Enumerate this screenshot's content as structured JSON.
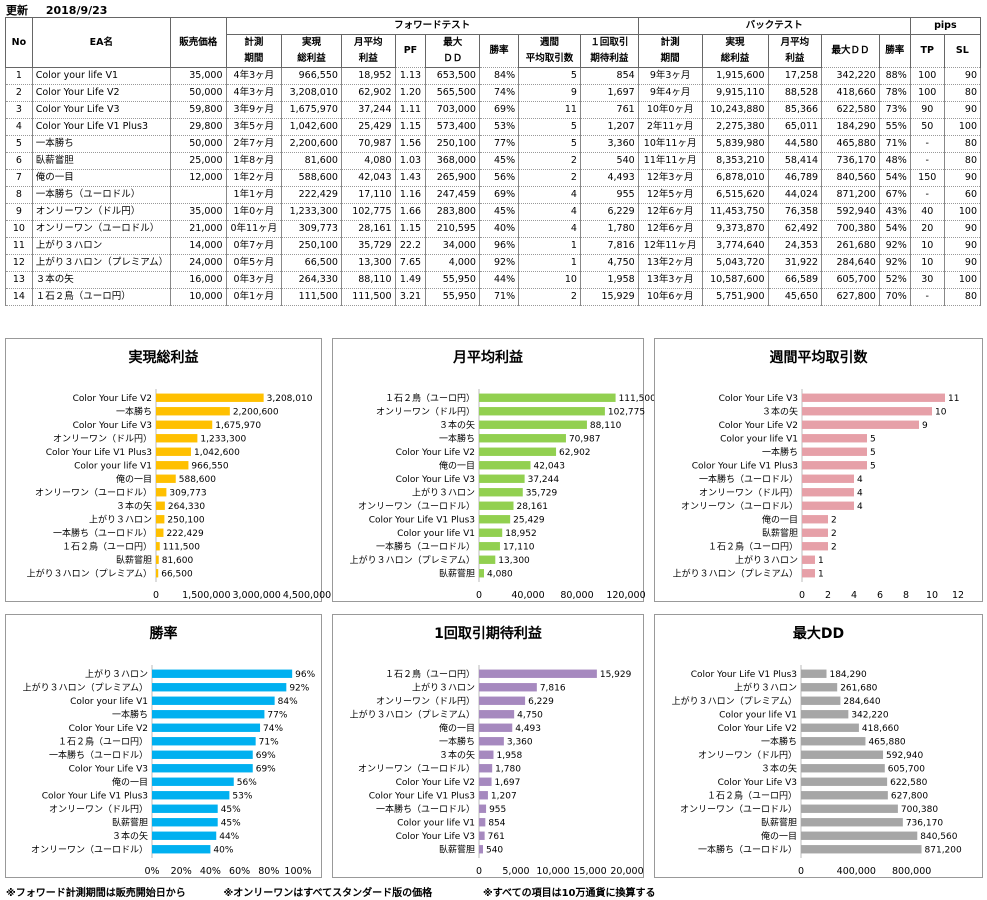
{
  "header": {
    "update_label": "更新",
    "update_date": "2018/9/23"
  },
  "table": {
    "group_headers": {
      "forward": "フォワードテスト",
      "back": "バックテスト",
      "pips": "pips"
    },
    "columns": {
      "no": "No",
      "ea": "EA名",
      "price": "販売価格",
      "f_period": [
        "計測",
        "期間"
      ],
      "f_total": [
        "実現",
        "総利益"
      ],
      "f_monthly": [
        "月平均",
        "利益"
      ],
      "f_pf": "PF",
      "f_dd": [
        "最大",
        "ＤＤ"
      ],
      "f_win": "勝率",
      "f_weekly": [
        "週間",
        "平均取引数"
      ],
      "f_expect": [
        "１回取引",
        "期待利益"
      ],
      "b_period": [
        "計測",
        "期間"
      ],
      "b_total": [
        "実現",
        "総利益"
      ],
      "b_monthly": [
        "月平均",
        "利益"
      ],
      "b_dd": "最大ＤＤ",
      "b_win": "勝率",
      "tp": "TP",
      "sl": "SL"
    },
    "rows": [
      [
        "1",
        "Color your life V1",
        "35,000",
        "4年3ヶ月",
        "966,550",
        "18,952",
        "1.13",
        "653,500",
        "84%",
        "5",
        "854",
        "9年3ヶ月",
        "1,915,600",
        "17,258",
        "342,220",
        "88%",
        "100",
        "90"
      ],
      [
        "2",
        "Color Your Life V2",
        "50,000",
        "4年3ヶ月",
        "3,208,010",
        "62,902",
        "1.20",
        "565,500",
        "74%",
        "9",
        "1,697",
        "9年4ヶ月",
        "9,915,110",
        "88,528",
        "418,660",
        "78%",
        "100",
        "80"
      ],
      [
        "3",
        "Color Your Life V3",
        "59,800",
        "3年9ヶ月",
        "1,675,970",
        "37,244",
        "1.11",
        "703,000",
        "69%",
        "11",
        "761",
        "10年0ヶ月",
        "10,243,880",
        "85,366",
        "622,580",
        "73%",
        "90",
        "90"
      ],
      [
        "4",
        "Color Your Life V1 Plus3",
        "29,800",
        "3年5ヶ月",
        "1,042,600",
        "25,429",
        "1.15",
        "573,400",
        "53%",
        "5",
        "1,207",
        "2年11ヶ月",
        "2,275,380",
        "65,011",
        "184,290",
        "55%",
        "50",
        "100"
      ],
      [
        "5",
        "一本勝ち",
        "50,000",
        "2年7ヶ月",
        "2,200,600",
        "70,987",
        "1.56",
        "250,100",
        "77%",
        "5",
        "3,360",
        "10年11ヶ月",
        "5,839,980",
        "44,580",
        "465,880",
        "71%",
        "-",
        "80"
      ],
      [
        "6",
        "臥薪嘗胆",
        "25,000",
        "1年8ヶ月",
        "81,600",
        "4,080",
        "1.03",
        "368,000",
        "45%",
        "2",
        "540",
        "11年11ヶ月",
        "8,353,210",
        "58,414",
        "736,170",
        "48%",
        "-",
        "80"
      ],
      [
        "7",
        "俺の一目",
        "12,000",
        "1年2ヶ月",
        "588,600",
        "42,043",
        "1.43",
        "265,900",
        "56%",
        "2",
        "4,493",
        "12年3ヶ月",
        "6,878,010",
        "46,789",
        "840,560",
        "54%",
        "150",
        "90"
      ],
      [
        "8",
        "一本勝ち（ユーロドル）",
        "",
        "1年1ヶ月",
        "222,429",
        "17,110",
        "1.16",
        "247,459",
        "69%",
        "4",
        "955",
        "12年5ヶ月",
        "6,515,620",
        "44,024",
        "871,200",
        "67%",
        "-",
        "60"
      ],
      [
        "9",
        "オンリーワン（ドル円）",
        "35,000",
        "1年0ヶ月",
        "1,233,300",
        "102,775",
        "1.66",
        "283,800",
        "45%",
        "4",
        "6,229",
        "12年6ヶ月",
        "11,453,750",
        "76,358",
        "592,940",
        "43%",
        "40",
        "100"
      ],
      [
        "10",
        "オンリーワン（ユーロドル）",
        "21,000",
        "0年11ヶ月",
        "309,773",
        "28,161",
        "1.15",
        "210,595",
        "40%",
        "4",
        "1,780",
        "12年6ヶ月",
        "9,373,870",
        "62,492",
        "700,380",
        "54%",
        "20",
        "90"
      ],
      [
        "11",
        "上がり３ハロン",
        "14,000",
        "0年7ヶ月",
        "250,100",
        "35,729",
        "22.2",
        "34,000",
        "96%",
        "1",
        "7,816",
        "12年11ヶ月",
        "3,774,640",
        "24,353",
        "261,680",
        "92%",
        "10",
        "90"
      ],
      [
        "12",
        "上がり３ハロン（プレミアム）",
        "24,000",
        "0年5ヶ月",
        "66,500",
        "13,300",
        "7.65",
        "4,000",
        "92%",
        "1",
        "4,750",
        "13年2ヶ月",
        "5,043,720",
        "31,922",
        "284,640",
        "92%",
        "10",
        "90"
      ],
      [
        "13",
        "３本の矢",
        "16,000",
        "0年3ヶ月",
        "264,330",
        "88,110",
        "1.49",
        "55,950",
        "44%",
        "10",
        "1,958",
        "13年3ヶ月",
        "10,587,600",
        "66,589",
        "605,700",
        "52%",
        "30",
        "100"
      ],
      [
        "14",
        "１石２鳥（ユーロ円）",
        "10,000",
        "0年1ヶ月",
        "111,500",
        "111,500",
        "3.21",
        "55,950",
        "71%",
        "2",
        "15,929",
        "10年6ヶ月",
        "5,751,900",
        "45,650",
        "627,800",
        "70%",
        "-",
        "80"
      ]
    ]
  },
  "chart_data": [
    {
      "type": "bar",
      "title": "実現総利益",
      "color": "#FFC000",
      "max": 4500000,
      "ticks": [
        0,
        1500000,
        3000000,
        4500000
      ],
      "tick_labels": [
        "0",
        "1,500,000",
        "3,000,000",
        "4,500,000"
      ],
      "categories": [
        "Color Your Life V2",
        "一本勝ち",
        "Color Your Life V3",
        "オンリーワン（ドル円）",
        "Color Your Life V1 Plus3",
        "Color your life V1",
        "俺の一目",
        "オンリーワン（ユーロドル）",
        "３本の矢",
        "上がり３ハロン",
        "一本勝ち（ユーロドル）",
        "１石２鳥（ユーロ円）",
        "臥薪嘗胆",
        "上がり３ハロン（プレミアム）"
      ],
      "values": [
        3208010,
        2200600,
        1675970,
        1233300,
        1042600,
        966550,
        588600,
        309773,
        264330,
        250100,
        222429,
        111500,
        81600,
        66500
      ],
      "labels": [
        "3,208,010",
        "2,200,600",
        "1,675,970",
        "1,233,300",
        "1,042,600",
        "966,550",
        "588,600",
        "309,773",
        "264,330",
        "250,100",
        "222,429",
        "111,500",
        "81,600",
        "66,500"
      ]
    },
    {
      "type": "bar",
      "title": "月平均利益",
      "color": "#92D050",
      "max": 120000,
      "ticks": [
        0,
        40000,
        80000,
        120000
      ],
      "tick_labels": [
        "0",
        "40,000",
        "80,000",
        "120,000"
      ],
      "categories": [
        "１石２鳥（ユーロ円）",
        "オンリーワン（ドル円）",
        "３本の矢",
        "一本勝ち",
        "Color Your Life V2",
        "俺の一目",
        "Color Your Life V3",
        "上がり３ハロン",
        "オンリーワン（ユーロドル）",
        "Color Your Life V1 Plus3",
        "Color your life V1",
        "一本勝ち（ユーロドル）",
        "上がり３ハロン（プレミアム）",
        "臥薪嘗胆"
      ],
      "values": [
        111500,
        102775,
        88110,
        70987,
        62902,
        42043,
        37244,
        35729,
        28161,
        25429,
        18952,
        17110,
        13300,
        4080
      ],
      "labels": [
        "111,500",
        "102,775",
        "88,110",
        "70,987",
        "62,902",
        "42,043",
        "37,244",
        "35,729",
        "28,161",
        "25,429",
        "18,952",
        "17,110",
        "13,300",
        "4,080"
      ]
    },
    {
      "type": "bar",
      "title": "週間平均取引数",
      "color": "#E6A0A8",
      "max": 12,
      "ticks": [
        0,
        2,
        4,
        6,
        8,
        10,
        12
      ],
      "tick_labels": [
        "0",
        "2",
        "4",
        "6",
        "8",
        "10",
        "12"
      ],
      "categories": [
        "Color Your Life V3",
        "３本の矢",
        "Color Your Life V2",
        "Color your life V1",
        "一本勝ち",
        "Color Your Life V1 Plus3",
        "一本勝ち（ユーロドル）",
        "オンリーワン（ドル円）",
        "オンリーワン（ユーロドル）",
        "俺の一目",
        "臥薪嘗胆",
        "１石２鳥（ユーロ円）",
        "上がり３ハロン",
        "上がり３ハロン（プレミアム）"
      ],
      "values": [
        11,
        10,
        9,
        5,
        5,
        5,
        4,
        4,
        4,
        2,
        2,
        2,
        1,
        1
      ],
      "labels": [
        "11",
        "10",
        "9",
        "5",
        "5",
        "5",
        "4",
        "4",
        "4",
        "2",
        "2",
        "2",
        "1",
        "1"
      ]
    },
    {
      "type": "bar",
      "title": "勝率",
      "color": "#00B0F0",
      "max": 100,
      "ticks": [
        0,
        20,
        40,
        60,
        80,
        100
      ],
      "tick_labels": [
        "0%",
        "20%",
        "40%",
        "60%",
        "80%",
        "100%"
      ],
      "categories": [
        "上がり３ハロン",
        "上がり３ハロン（プレミアム）",
        "Color your life V1",
        "一本勝ち",
        "Color Your Life V2",
        "１石２鳥（ユーロ円）",
        "一本勝ち（ユーロドル）",
        "Color Your Life V3",
        "俺の一目",
        "Color Your Life V1 Plus3",
        "オンリーワン（ドル円）",
        "臥薪嘗胆",
        "３本の矢",
        "オンリーワン（ユーロドル）"
      ],
      "values": [
        96,
        92,
        84,
        77,
        74,
        71,
        69,
        69,
        56,
        53,
        45,
        45,
        44,
        40
      ],
      "labels": [
        "96%",
        "92%",
        "84%",
        "77%",
        "74%",
        "71%",
        "69%",
        "69%",
        "56%",
        "53%",
        "45%",
        "45%",
        "44%",
        "40%"
      ]
    },
    {
      "type": "bar",
      "title": "1回取引期待利益",
      "color": "#A689BF",
      "max": 20000,
      "ticks": [
        0,
        5000,
        10000,
        15000,
        20000
      ],
      "tick_labels": [
        "0",
        "5,000",
        "10,000",
        "15,000",
        "20,000"
      ],
      "categories": [
        "１石２鳥（ユーロ円）",
        "上がり３ハロン",
        "オンリーワン（ドル円）",
        "上がり３ハロン（プレミアム）",
        "俺の一目",
        "一本勝ち",
        "３本の矢",
        "オンリーワン（ユーロドル）",
        "Color Your Life V2",
        "Color Your Life V1 Plus3",
        "一本勝ち（ユーロドル）",
        "Color your life V1",
        "Color Your Life V3",
        "臥薪嘗胆"
      ],
      "values": [
        15929,
        7816,
        6229,
        4750,
        4493,
        3360,
        1958,
        1780,
        1697,
        1207,
        955,
        854,
        761,
        540
      ],
      "labels": [
        "15,929",
        "7,816",
        "6,229",
        "4,750",
        "4,493",
        "3,360",
        "1,958",
        "1,780",
        "1,697",
        "1,207",
        "955",
        "854",
        "761",
        "540"
      ]
    },
    {
      "type": "bar",
      "title": "最大DD",
      "color": "#A6A6A6",
      "max": 1200000,
      "ticks": [
        0,
        400000,
        800000
      ],
      "tick_labels": [
        "0",
        "400,000",
        "800,000"
      ],
      "categories": [
        "Color Your Life V1 Plus3",
        "上がり３ハロン",
        "上がり３ハロン（プレミアム）",
        "Color your life V1",
        "Color Your Life V2",
        "一本勝ち",
        "オンリーワン（ドル円）",
        "３本の矢",
        "Color Your Life V3",
        "１石２鳥（ユーロ円）",
        "オンリーワン（ユーロドル）",
        "臥薪嘗胆",
        "俺の一目",
        "一本勝ち（ユーロドル）"
      ],
      "values": [
        184290,
        261680,
        284640,
        342220,
        418660,
        465880,
        592940,
        605700,
        622580,
        627800,
        700380,
        736170,
        840560,
        871200
      ],
      "labels": [
        "184,290",
        "261,680",
        "284,640",
        "342,220",
        "418,660",
        "465,880",
        "592,940",
        "605,700",
        "622,580",
        "627,800",
        "700,380",
        "736,170",
        "840,560",
        "871,200"
      ]
    }
  ],
  "notes": [
    "※フォワード計測期間は販売開始日から",
    "※オンリーワンはすべてスタンダード版の価格",
    "※すべての項目は10万通貨に換算する"
  ]
}
